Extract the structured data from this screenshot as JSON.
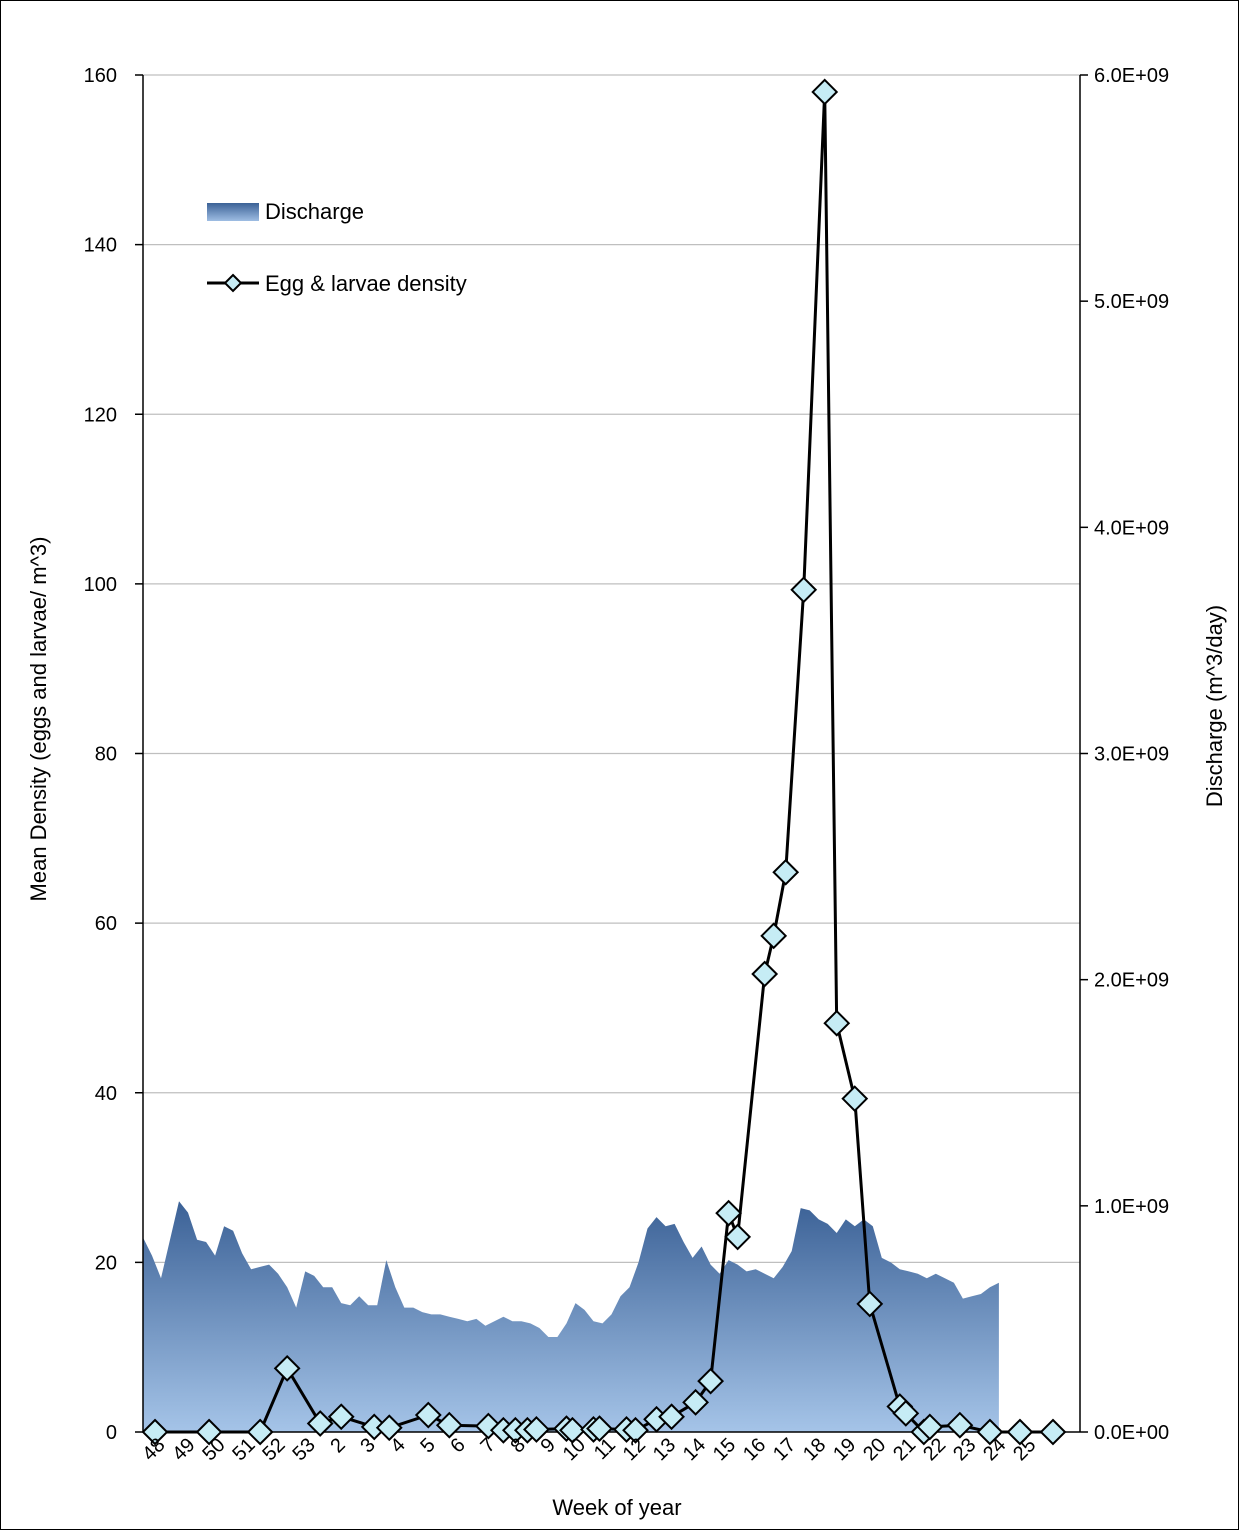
{
  "chart_data": {
    "type": "line",
    "title": "",
    "xlabel": "Week of year",
    "ylabel_left": "Mean Density (eggs and larvae/ m^3)",
    "ylabel_right": "Discharge (m^3/day)",
    "x_axis_tick_labels": [
      "48",
      "49",
      "50",
      "51",
      "52",
      "53",
      "2",
      "3",
      "4",
      "5",
      "6",
      "7",
      "8",
      "9",
      "10",
      "11",
      "12",
      "13",
      "14",
      "15",
      "16",
      "17",
      "18",
      "19",
      "20",
      "21",
      "22",
      "23",
      "24",
      "25"
    ],
    "y_left": {
      "min": 0,
      "max": 160,
      "ticks": [
        0,
        20,
        40,
        60,
        80,
        100,
        120,
        140,
        160
      ],
      "tick_labels": [
        "0",
        "20",
        "40",
        "60",
        "80",
        "100",
        "120",
        "140",
        "160"
      ]
    },
    "y_right": {
      "min": 0,
      "max": 6000000000,
      "ticks": [
        0,
        1000000000,
        2000000000,
        3000000000,
        4000000000,
        5000000000,
        6000000000
      ],
      "tick_labels": [
        "0.0E+00",
        "1.0E+09",
        "2.0E+09",
        "3.0E+09",
        "4.0E+09",
        "5.0E+09",
        "6.0E+09"
      ]
    },
    "x_range": [
      48,
      79.2
    ],
    "grid": "horizontal",
    "legend": {
      "position": "top-left",
      "entries": [
        {
          "name": "Discharge",
          "type": "area",
          "color": "#4f78aa"
        },
        {
          "name": "Egg & larvae density",
          "type": "line-diamond",
          "color": "#000000",
          "marker_fill": "#c6ecf5"
        }
      ]
    },
    "colors": {
      "discharge_top": "#3b6196",
      "discharge_bottom": "#a5c4e8",
      "line": "#000000",
      "marker_fill": "#c6ecf5",
      "grid": "#bfbfbf"
    },
    "series": [
      {
        "name": "Discharge",
        "axis": "right",
        "type": "area",
        "points": [
          [
            48.0,
            860000000
          ],
          [
            48.3,
            780000000
          ],
          [
            48.6,
            680000000
          ],
          [
            48.9,
            850000000
          ],
          [
            49.2,
            1020000000
          ],
          [
            49.5,
            970000000
          ],
          [
            49.8,
            850000000
          ],
          [
            50.1,
            840000000
          ],
          [
            50.4,
            780000000
          ],
          [
            50.7,
            910000000
          ],
          [
            51.0,
            890000000
          ],
          [
            51.3,
            790000000
          ],
          [
            51.6,
            720000000
          ],
          [
            51.9,
            730000000
          ],
          [
            52.2,
            740000000
          ],
          [
            52.5,
            700000000
          ],
          [
            52.8,
            640000000
          ],
          [
            53.1,
            550000000
          ],
          [
            53.4,
            710000000
          ],
          [
            53.7,
            690000000
          ],
          [
            54.0,
            640000000
          ],
          [
            54.3,
            640000000
          ],
          [
            54.6,
            570000000
          ],
          [
            54.9,
            560000000
          ],
          [
            55.2,
            600000000
          ],
          [
            55.5,
            560000000
          ],
          [
            55.8,
            560000000
          ],
          [
            56.1,
            760000000
          ],
          [
            56.4,
            640000000
          ],
          [
            56.7,
            550000000
          ],
          [
            57.0,
            550000000
          ],
          [
            57.3,
            530000000
          ],
          [
            57.6,
            520000000
          ],
          [
            57.9,
            520000000
          ],
          [
            58.2,
            510000000
          ],
          [
            58.5,
            500000000
          ],
          [
            58.8,
            490000000
          ],
          [
            59.1,
            500000000
          ],
          [
            59.4,
            470000000
          ],
          [
            59.7,
            490000000
          ],
          [
            60.0,
            510000000
          ],
          [
            60.3,
            490000000
          ],
          [
            60.6,
            490000000
          ],
          [
            60.9,
            480000000
          ],
          [
            61.2,
            460000000
          ],
          [
            61.5,
            420000000
          ],
          [
            61.8,
            420000000
          ],
          [
            62.1,
            480000000
          ],
          [
            62.4,
            570000000
          ],
          [
            62.7,
            540000000
          ],
          [
            63.0,
            490000000
          ],
          [
            63.3,
            480000000
          ],
          [
            63.6,
            520000000
          ],
          [
            63.9,
            600000000
          ],
          [
            64.2,
            640000000
          ],
          [
            64.5,
            750000000
          ],
          [
            64.8,
            900000000
          ],
          [
            65.1,
            950000000
          ],
          [
            65.4,
            910000000
          ],
          [
            65.7,
            920000000
          ],
          [
            66.0,
            840000000
          ],
          [
            66.3,
            770000000
          ],
          [
            66.6,
            820000000
          ],
          [
            66.9,
            740000000
          ],
          [
            67.2,
            700000000
          ],
          [
            67.5,
            760000000
          ],
          [
            67.8,
            740000000
          ],
          [
            68.1,
            710000000
          ],
          [
            68.4,
            720000000
          ],
          [
            68.7,
            700000000
          ],
          [
            69.0,
            680000000
          ],
          [
            69.3,
            730000000
          ],
          [
            69.6,
            800000000
          ],
          [
            69.9,
            990000000
          ],
          [
            70.2,
            980000000
          ],
          [
            70.5,
            940000000
          ],
          [
            70.8,
            920000000
          ],
          [
            71.1,
            880000000
          ],
          [
            71.4,
            940000000
          ],
          [
            71.7,
            910000000
          ],
          [
            72.0,
            940000000
          ],
          [
            72.3,
            910000000
          ],
          [
            72.6,
            770000000
          ],
          [
            72.9,
            750000000
          ],
          [
            73.2,
            720000000
          ],
          [
            73.5,
            710000000
          ],
          [
            73.8,
            700000000
          ],
          [
            74.1,
            680000000
          ],
          [
            74.4,
            700000000
          ],
          [
            74.7,
            680000000
          ],
          [
            75.0,
            660000000
          ],
          [
            75.3,
            590000000
          ],
          [
            75.6,
            600000000
          ],
          [
            75.9,
            610000000
          ],
          [
            76.2,
            640000000
          ],
          [
            76.5,
            660000000
          ]
        ]
      },
      {
        "name": "Egg & larvae density",
        "axis": "left",
        "type": "line",
        "marker": "diamond",
        "points": [
          [
            48.4,
            0
          ],
          [
            50.2,
            0
          ],
          [
            51.9,
            0
          ],
          [
            52.8,
            7.5
          ],
          [
            53.9,
            1
          ],
          [
            54.6,
            1.8
          ],
          [
            55.7,
            0.6
          ],
          [
            56.2,
            0.5
          ],
          [
            57.5,
            2
          ],
          [
            58.2,
            0.8
          ],
          [
            59.5,
            0.7
          ],
          [
            60.0,
            0.2
          ],
          [
            60.4,
            0.2
          ],
          [
            60.8,
            0.2
          ],
          [
            61.1,
            0.3
          ],
          [
            62.1,
            0.4
          ],
          [
            62.3,
            0.2
          ],
          [
            63.0,
            0.3
          ],
          [
            63.2,
            0.4
          ],
          [
            64.1,
            0.3
          ],
          [
            64.4,
            0.2
          ],
          [
            65.1,
            1.5
          ],
          [
            65.6,
            1.8
          ],
          [
            66.4,
            3.5
          ],
          [
            66.9,
            6
          ],
          [
            67.5,
            25.8
          ],
          [
            67.8,
            23
          ],
          [
            68.7,
            54
          ],
          [
            69.0,
            58.5
          ],
          [
            69.4,
            66
          ],
          [
            70.0,
            99.3
          ],
          [
            70.7,
            158
          ],
          [
            71.1,
            48.2
          ],
          [
            71.7,
            39.3
          ],
          [
            72.2,
            15.1
          ],
          [
            73.2,
            3
          ],
          [
            73.4,
            2.2
          ],
          [
            74.0,
            0
          ],
          [
            74.2,
            0.6
          ],
          [
            75.2,
            0.8
          ],
          [
            76.2,
            0
          ],
          [
            77.2,
            0
          ],
          [
            78.3,
            0
          ]
        ]
      }
    ]
  }
}
